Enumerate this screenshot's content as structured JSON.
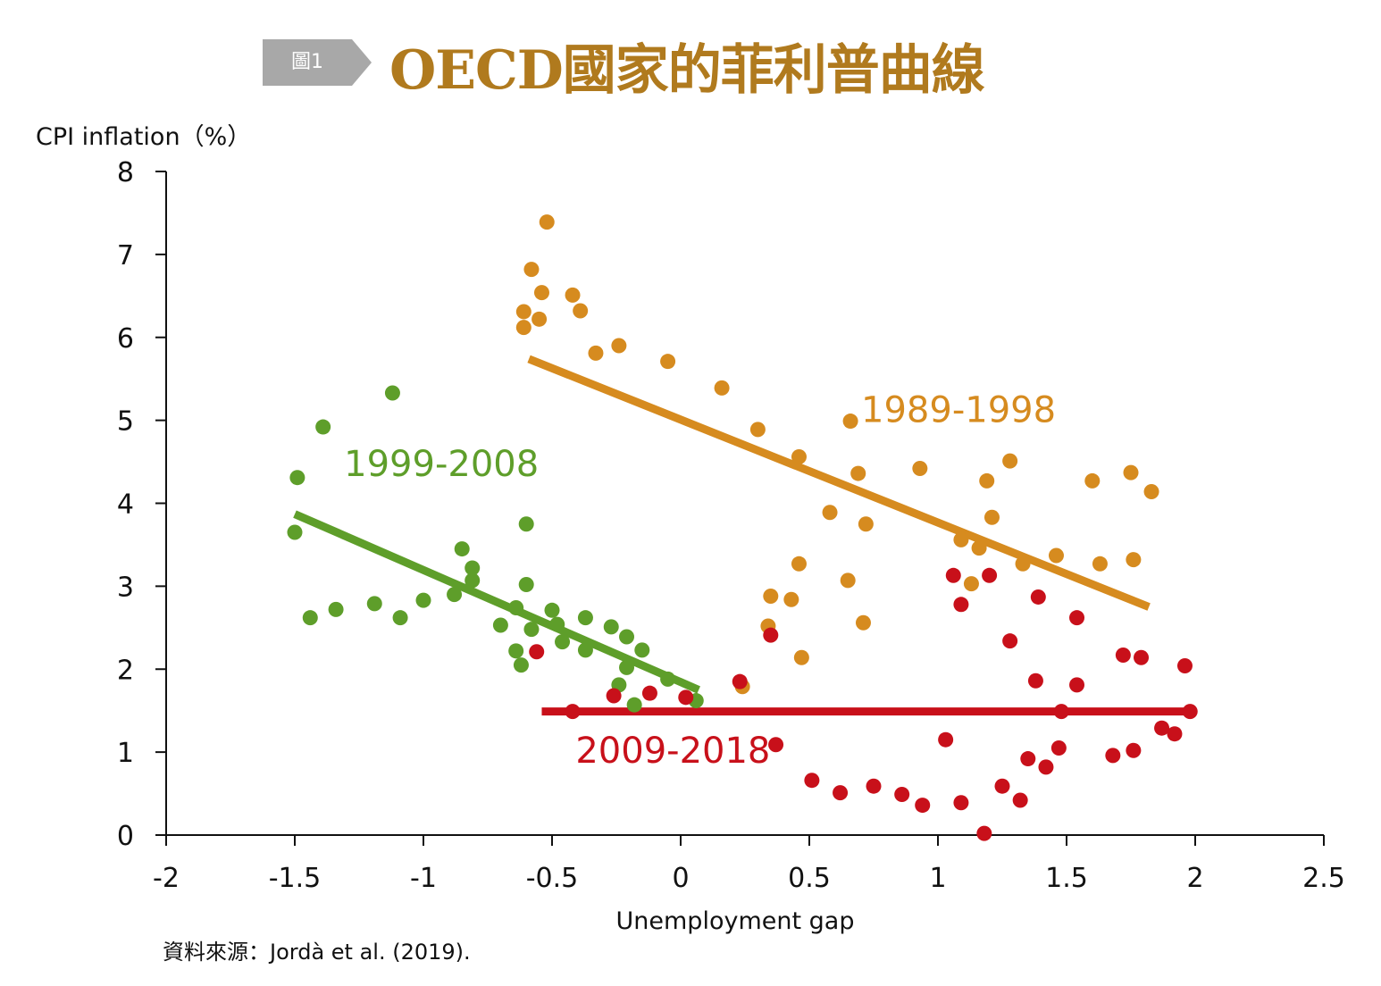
{
  "header": {
    "badge": "圖1",
    "title": "OECD國家的菲利普曲線",
    "badge_color": "#a8a8a8",
    "title_color": "#b07a1e"
  },
  "chart_data": {
    "type": "scatter",
    "title": "OECD國家的菲利普曲線",
    "xlabel": "Unemployment gap",
    "ylabel": "CPI inflation（%）",
    "xlim": [
      -2,
      2.5
    ],
    "ylim": [
      0,
      8
    ],
    "x_ticks": [
      "-2",
      "-1.5",
      "-1",
      "-0.5",
      "0",
      "0.5",
      "1",
      "1.5",
      "2",
      "2.5"
    ],
    "y_ticks": [
      "0",
      "1",
      "2",
      "3",
      "4",
      "5",
      "6",
      "7",
      "8"
    ],
    "grid": false,
    "series": [
      {
        "name": "1999-2008",
        "color": "#5e9e2a",
        "points": [
          [
            -1.5,
            3.65
          ],
          [
            -1.49,
            4.31
          ],
          [
            -1.44,
            2.62
          ],
          [
            -1.39,
            4.92
          ],
          [
            -1.34,
            2.72
          ],
          [
            -1.19,
            2.79
          ],
          [
            -1.12,
            5.33
          ],
          [
            -1.09,
            2.62
          ],
          [
            -1.0,
            2.83
          ],
          [
            -0.88,
            2.9
          ],
          [
            -0.85,
            3.45
          ],
          [
            -0.81,
            3.22
          ],
          [
            -0.81,
            3.07
          ],
          [
            -0.7,
            2.53
          ],
          [
            -0.64,
            2.74
          ],
          [
            -0.64,
            2.22
          ],
          [
            -0.62,
            2.05
          ],
          [
            -0.6,
            3.75
          ],
          [
            -0.6,
            3.02
          ],
          [
            -0.58,
            2.48
          ],
          [
            -0.5,
            2.71
          ],
          [
            -0.48,
            2.54
          ],
          [
            -0.46,
            2.33
          ],
          [
            -0.37,
            2.62
          ],
          [
            -0.37,
            2.23
          ],
          [
            -0.27,
            2.51
          ],
          [
            -0.24,
            1.81
          ],
          [
            -0.21,
            2.39
          ],
          [
            -0.21,
            2.02
          ],
          [
            -0.18,
            1.57
          ],
          [
            -0.15,
            2.23
          ],
          [
            -0.05,
            1.88
          ],
          [
            0.06,
            1.62
          ]
        ],
        "trend": [
          [
            -1.5,
            3.87
          ],
          [
            0.07,
            1.75
          ]
        ]
      },
      {
        "name": "1989-1998",
        "color": "#d68b1f",
        "points": [
          [
            -0.61,
            6.12
          ],
          [
            -0.61,
            6.31
          ],
          [
            -0.58,
            6.82
          ],
          [
            -0.55,
            6.22
          ],
          [
            -0.54,
            6.54
          ],
          [
            -0.52,
            7.39
          ],
          [
            -0.42,
            6.51
          ],
          [
            -0.39,
            6.32
          ],
          [
            -0.33,
            5.81
          ],
          [
            -0.24,
            5.9
          ],
          [
            -0.05,
            5.71
          ],
          [
            0.16,
            5.39
          ],
          [
            0.3,
            4.89
          ],
          [
            0.34,
            2.52
          ],
          [
            0.35,
            2.88
          ],
          [
            0.43,
            2.84
          ],
          [
            0.46,
            4.56
          ],
          [
            0.46,
            3.27
          ],
          [
            0.47,
            2.14
          ],
          [
            0.58,
            3.89
          ],
          [
            0.65,
            3.07
          ],
          [
            0.66,
            4.99
          ],
          [
            0.69,
            4.36
          ],
          [
            0.71,
            2.56
          ],
          [
            0.72,
            3.75
          ],
          [
            0.93,
            4.42
          ],
          [
            1.09,
            3.56
          ],
          [
            1.13,
            3.03
          ],
          [
            1.16,
            3.46
          ],
          [
            1.19,
            4.27
          ],
          [
            1.21,
            3.83
          ],
          [
            1.28,
            4.51
          ],
          [
            1.33,
            3.27
          ],
          [
            1.46,
            3.37
          ],
          [
            1.6,
            4.27
          ],
          [
            1.63,
            3.27
          ],
          [
            1.75,
            4.37
          ],
          [
            1.76,
            3.32
          ],
          [
            1.83,
            4.14
          ],
          [
            0.24,
            1.79
          ]
        ],
        "trend": [
          [
            -0.59,
            5.74
          ],
          [
            1.82,
            2.75
          ]
        ]
      },
      {
        "name": "2009-2018",
        "color": "#c8101a",
        "points": [
          [
            -0.56,
            2.21
          ],
          [
            -0.42,
            1.49
          ],
          [
            -0.26,
            1.68
          ],
          [
            -0.12,
            1.71
          ],
          [
            0.02,
            1.66
          ],
          [
            0.23,
            1.85
          ],
          [
            0.35,
            2.41
          ],
          [
            0.37,
            1.09
          ],
          [
            0.51,
            0.66
          ],
          [
            0.62,
            0.51
          ],
          [
            0.75,
            0.59
          ],
          [
            0.86,
            0.49
          ],
          [
            0.94,
            0.36
          ],
          [
            1.03,
            1.15
          ],
          [
            1.06,
            3.13
          ],
          [
            1.09,
            2.78
          ],
          [
            1.09,
            0.39
          ],
          [
            1.2,
            3.13
          ],
          [
            1.18,
            0.02
          ],
          [
            1.25,
            0.59
          ],
          [
            1.28,
            2.34
          ],
          [
            1.32,
            0.42
          ],
          [
            1.35,
            0.92
          ],
          [
            1.38,
            1.86
          ],
          [
            1.39,
            2.87
          ],
          [
            1.42,
            0.82
          ],
          [
            1.47,
            1.05
          ],
          [
            1.48,
            1.49
          ],
          [
            1.54,
            2.62
          ],
          [
            1.54,
            1.81
          ],
          [
            1.68,
            0.96
          ],
          [
            1.72,
            2.17
          ],
          [
            1.76,
            1.02
          ],
          [
            1.79,
            2.14
          ],
          [
            1.87,
            1.29
          ],
          [
            1.92,
            1.22
          ],
          [
            1.96,
            2.04
          ],
          [
            1.98,
            1.49
          ]
        ],
        "trend": [
          [
            -0.54,
            1.49
          ],
          [
            1.99,
            1.49
          ]
        ]
      }
    ],
    "series_labels": [
      {
        "text": "1999-2008",
        "x": -0.93,
        "y": 4.33
      },
      {
        "text": "1989-1998",
        "x": 1.08,
        "y": 4.98
      },
      {
        "text": "2009-2018",
        "x": -0.03,
        "y": 0.87
      }
    ]
  },
  "source": "資料來源：Jordà et al. (2019)."
}
